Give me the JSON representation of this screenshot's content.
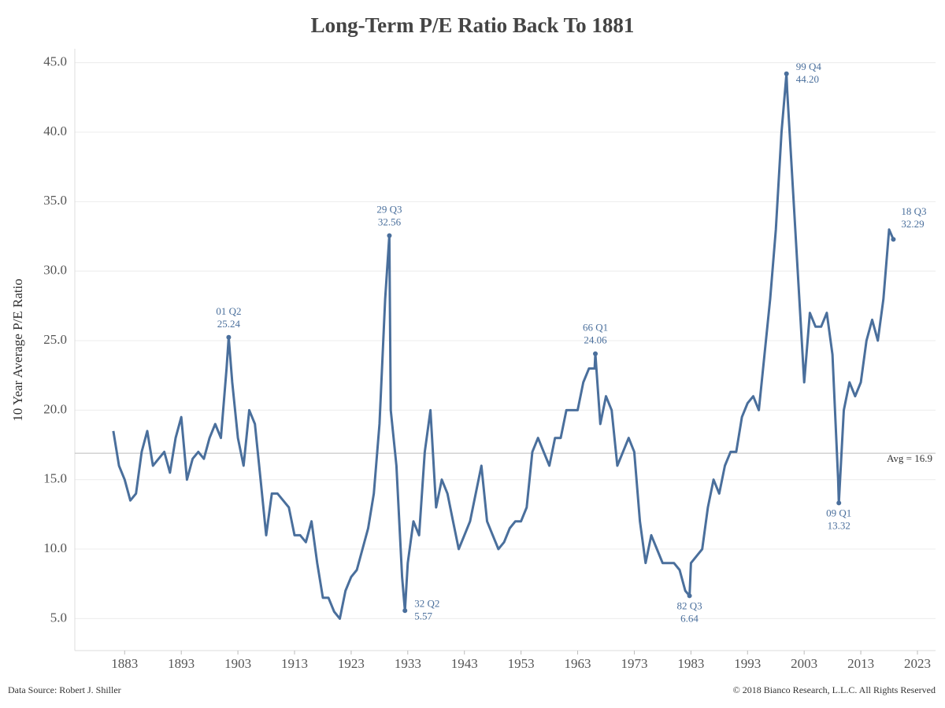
{
  "chart_data": {
    "type": "line",
    "title": "Long-Term P/E Ratio Back To 1881",
    "y_label": "10 Year Average P/E Ratio",
    "source": "Data Source: Robert J. Shiller",
    "copyright": "© 2018 Bianco Research, L.L.C. All Rights Reserved",
    "xlim": [
      1874.2,
      2026.2
    ],
    "ylim": [
      2.7,
      46
    ],
    "xticks": [
      1883,
      1893,
      1903,
      1913,
      1923,
      1933,
      1943,
      1953,
      1963,
      1973,
      1983,
      1993,
      2003,
      2013,
      2023
    ],
    "yticks": [
      {
        "value": 5,
        "label": "5.0"
      },
      {
        "value": 10,
        "label": "10.0"
      },
      {
        "value": 15,
        "label": "15.0"
      },
      {
        "value": 20,
        "label": "20.0"
      },
      {
        "value": 25,
        "label": "25.0"
      },
      {
        "value": 30,
        "label": "30.0"
      },
      {
        "value": 35,
        "label": "35.0"
      },
      {
        "value": 40,
        "label": "40.0"
      },
      {
        "value": 45,
        "label": "45.0"
      }
    ],
    "grid": true,
    "avg": {
      "value": 16.9,
      "label": "Avg = 16.9"
    },
    "x": [
      1881,
      1882,
      1883,
      1884,
      1885,
      1886,
      1887,
      1888,
      1889,
      1890,
      1891,
      1892,
      1893,
      1894,
      1895,
      1896,
      1897,
      1898,
      1899,
      1900,
      1901,
      1901.375,
      1902,
      1903,
      1904,
      1905,
      1906,
      1907,
      1908,
      1909,
      1910,
      1911,
      1912,
      1913,
      1914,
      1915,
      1916,
      1917,
      1918,
      1919,
      1920,
      1921,
      1922,
      1923,
      1924,
      1925,
      1926,
      1927,
      1928,
      1929,
      1929.75,
      1930,
      1931,
      1932,
      1932.5,
      1933,
      1934,
      1935,
      1936,
      1937,
      1938,
      1939,
      1940,
      1941,
      1942,
      1943,
      1944,
      1945,
      1946,
      1947,
      1948,
      1949,
      1950,
      1951,
      1952,
      1953,
      1954,
      1955,
      1956,
      1957,
      1958,
      1959,
      1960,
      1961,
      1962,
      1963,
      1964,
      1965,
      1966,
      1966.125,
      1967,
      1968,
      1969,
      1970,
      1971,
      1972,
      1973,
      1974,
      1975,
      1976,
      1977,
      1978,
      1979,
      1980,
      1981,
      1982,
      1982.75,
      1983,
      1984,
      1985,
      1986,
      1987,
      1988,
      1989,
      1990,
      1991,
      1992,
      1993,
      1994,
      1995,
      1996,
      1997,
      1998,
      1999,
      1999.875,
      2000,
      2001,
      2002,
      2003,
      2004,
      2005,
      2006,
      2007,
      2008,
      2009,
      2009.125,
      2010,
      2011,
      2012,
      2013,
      2014,
      2015,
      2016,
      2017,
      2018,
      2018.75
    ],
    "series": [
      {
        "name": "10 Year Average P/E Ratio",
        "color": "#4a6f9c",
        "values": [
          18.5,
          16,
          15,
          13.5,
          14,
          17,
          18.5,
          16,
          16.5,
          17,
          15.5,
          18,
          19.5,
          15,
          16.5,
          17,
          16.5,
          18,
          19,
          18,
          23,
          25.24,
          22,
          18,
          16,
          20,
          19,
          15,
          11,
          14,
          14,
          13.5,
          13,
          11,
          11,
          10.5,
          12,
          9,
          6.5,
          6.5,
          5.5,
          5,
          7,
          8,
          8.5,
          10,
          11.5,
          14,
          19,
          28,
          32.56,
          20,
          16,
          8,
          5.57,
          9,
          12,
          11,
          17,
          20,
          13,
          15,
          14,
          12,
          10,
          11,
          12,
          14,
          16,
          12,
          11,
          10,
          10.5,
          11.5,
          12,
          12,
          13,
          17,
          18,
          17,
          16,
          18,
          18,
          20,
          20,
          20,
          22,
          23,
          23,
          24.06,
          19,
          21,
          20,
          16,
          17,
          18,
          17,
          12,
          9,
          11,
          10,
          9,
          9,
          9,
          8.5,
          7,
          6.64,
          9,
          9.5,
          10,
          13,
          15,
          14,
          16,
          17,
          17,
          19.5,
          20.5,
          21,
          20,
          24,
          28,
          33,
          40,
          44.2,
          43,
          36,
          29,
          22,
          27,
          26,
          26,
          27,
          24,
          15,
          13.32,
          20,
          22,
          21,
          22,
          25,
          26.5,
          25,
          28,
          33,
          32.29
        ]
      }
    ],
    "annotations": [
      {
        "label": "01 Q2",
        "y_label": "25.24",
        "x": 1901.375,
        "y": 25.24,
        "position": "above"
      },
      {
        "label": "29 Q3",
        "y_label": "32.56",
        "x": 1929.75,
        "y": 32.56,
        "position": "above"
      },
      {
        "label": "32 Q2",
        "y_label": "5.57",
        "x": 1932.5,
        "y": 5.57,
        "position": "right"
      },
      {
        "label": "66 Q1",
        "y_label": "24.06",
        "x": 1966.125,
        "y": 24.06,
        "position": "above"
      },
      {
        "label": "82 Q3",
        "y_label": "6.64",
        "x": 1982.75,
        "y": 6.64,
        "position": "below"
      },
      {
        "label": "99 Q4",
        "y_label": "44.20",
        "x": 1999.875,
        "y": 44.2,
        "position": "right"
      },
      {
        "label": "09 Q1",
        "y_label": "13.32",
        "x": 2009.125,
        "y": 13.32,
        "position": "below"
      },
      {
        "label": "18 Q3",
        "y_label": "32.29",
        "x": 2018.75,
        "y": 32.29,
        "position": "above-right"
      }
    ]
  }
}
